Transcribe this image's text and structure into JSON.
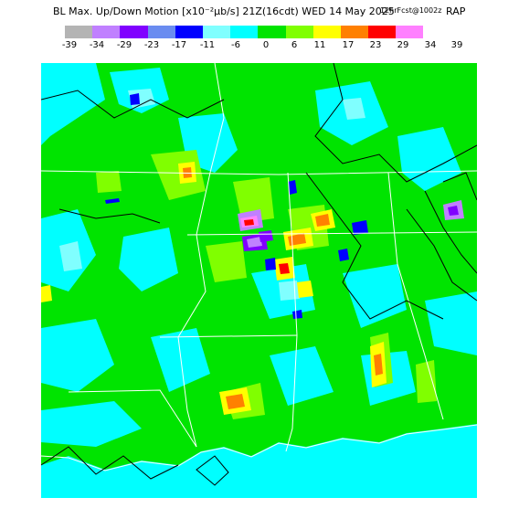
{
  "header": {
    "title_main": "BL Max. Up/Down Motion [x10⁻²µb/s] 21Z(16cdt) WED 14 May 2025",
    "source": "12hrFcst@1002z",
    "model": "RAP"
  },
  "legend": {
    "labels": [
      "-39",
      "-34",
      "-29",
      "-23",
      "-17",
      "-11",
      "-6",
      "0",
      "6",
      "11",
      "17",
      "23",
      "29",
      "34",
      "39"
    ],
    "colors": [
      "#b4b4b4",
      "#c080ff",
      "#8000ff",
      "#6a8cf0",
      "#0000ff",
      "#80ffff",
      "#00ffff",
      "#00e400",
      "#80ff00",
      "#ffff00",
      "#ff8000",
      "#ff0000",
      "#ff80ff"
    ]
  },
  "map": {
    "colors": {
      "ocean": "#00ffff",
      "green": "#00e400",
      "lime": "#80ff00",
      "cyan": "#00ffff",
      "light_cyan": "#80ffff",
      "yellow": "#ffff00",
      "orange": "#ff8000",
      "red": "#ff0000",
      "blue": "#0000ff",
      "purple": "#8000ff",
      "lavender": "#c080ff",
      "pink": "#ff80ff",
      "boundary": "#ffffff",
      "contour": "#000000"
    }
  }
}
